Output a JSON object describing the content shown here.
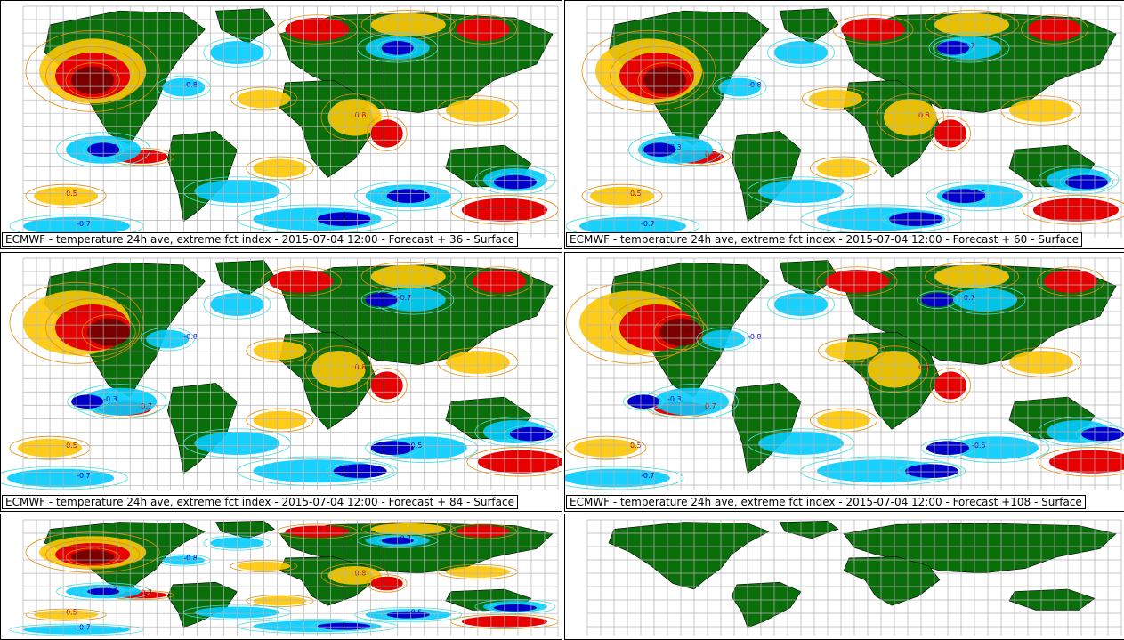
{
  "panels": [
    {
      "caption": "ECMWF - temperature 24h ave, extreme fct index - 2015-07-04 12:00 - Forecast + 36 - Surface"
    },
    {
      "caption": "ECMWF - temperature 24h ave, extreme fct index - 2015-07-04 12:00 - Forecast + 60 - Surface"
    },
    {
      "caption": "ECMWF - temperature 24h ave, extreme fct index - 2015-07-04 12:00 - Forecast + 84 - Surface"
    },
    {
      "caption": "ECMWF - temperature 24h ave, extreme fct index - 2015-07-04 12:00 - Forecast +108 - Surface"
    },
    {
      "caption": ""
    },
    {
      "caption": ""
    }
  ],
  "colors": {
    "land": "#0a6e0a",
    "grid": "#b4b4b4",
    "extreme_hot": "#7a0000",
    "hot": "#e60000",
    "warm": "#ffc800",
    "mild_warm_contour": "#e68a00",
    "cold": "#00ccff",
    "cool_contour": "#40e0e0",
    "extreme_cold": "#0000c8"
  },
  "contour_labels": {
    "warm": [
      "0.5",
      "0.7",
      "0.8",
      "0.3"
    ],
    "cold": [
      "-0.8",
      "-0.5",
      "-0.3",
      "-0.7"
    ]
  }
}
